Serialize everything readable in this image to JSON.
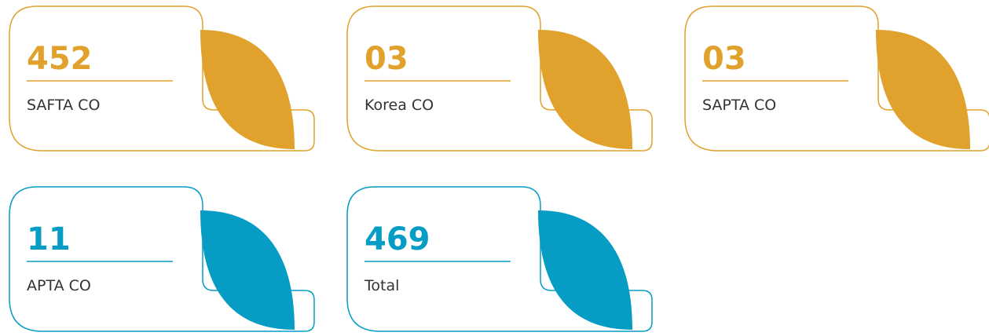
{
  "cards": [
    {
      "value": "452",
      "label": "SAFTA CO"
    },
    {
      "value": "03",
      "label": "Korea CO"
    },
    {
      "value": "03",
      "label": "SAPTA CO"
    },
    {
      "value": "11",
      "label": "APTA CO"
    },
    {
      "value": "469",
      "label": "Total"
    }
  ]
}
